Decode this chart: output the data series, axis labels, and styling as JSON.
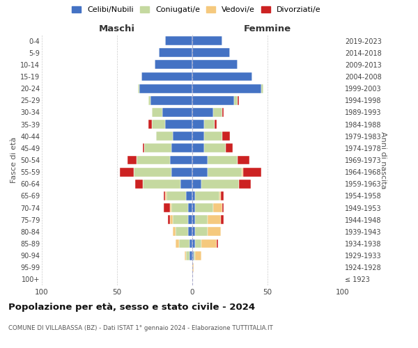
{
  "age_groups": [
    "100+",
    "95-99",
    "90-94",
    "85-89",
    "80-84",
    "75-79",
    "70-74",
    "65-69",
    "60-64",
    "55-59",
    "50-54",
    "45-49",
    "40-44",
    "35-39",
    "30-34",
    "25-29",
    "20-24",
    "15-19",
    "10-14",
    "5-9",
    "0-4"
  ],
  "birth_years": [
    "≤ 1923",
    "1924-1928",
    "1929-1933",
    "1934-1938",
    "1939-1943",
    "1944-1948",
    "1949-1953",
    "1954-1958",
    "1959-1963",
    "1964-1968",
    "1969-1973",
    "1974-1978",
    "1979-1983",
    "1984-1988",
    "1989-1993",
    "1994-1998",
    "1999-2003",
    "2004-2008",
    "2009-2013",
    "2014-2018",
    "2019-2023"
  ],
  "maschi": {
    "celibi": [
      0,
      0,
      2,
      2,
      3,
      3,
      3,
      4,
      8,
      14,
      15,
      14,
      13,
      18,
      20,
      28,
      35,
      34,
      25,
      22,
      18
    ],
    "coniugati": [
      0,
      0,
      2,
      7,
      8,
      10,
      11,
      13,
      25,
      25,
      22,
      18,
      11,
      9,
      7,
      1,
      1,
      0,
      0,
      0,
      0
    ],
    "vedovi": [
      0,
      0,
      1,
      2,
      2,
      2,
      1,
      1,
      0,
      0,
      0,
      0,
      0,
      0,
      0,
      0,
      0,
      0,
      0,
      0,
      0
    ],
    "divorziati": [
      0,
      0,
      0,
      0,
      0,
      1,
      4,
      1,
      5,
      9,
      6,
      1,
      0,
      2,
      0,
      0,
      0,
      0,
      0,
      0,
      0
    ]
  },
  "femmine": {
    "nubili": [
      0,
      0,
      1,
      2,
      2,
      2,
      2,
      2,
      6,
      10,
      10,
      8,
      8,
      8,
      14,
      28,
      46,
      40,
      30,
      25,
      20
    ],
    "coniugate": [
      0,
      0,
      1,
      4,
      8,
      8,
      12,
      16,
      25,
      23,
      20,
      14,
      12,
      7,
      6,
      2,
      1,
      0,
      0,
      0,
      0
    ],
    "vedove": [
      0,
      1,
      4,
      10,
      9,
      9,
      6,
      1,
      0,
      1,
      0,
      0,
      0,
      0,
      0,
      0,
      0,
      0,
      0,
      0,
      0
    ],
    "divorziate": [
      0,
      0,
      0,
      1,
      0,
      2,
      1,
      2,
      8,
      12,
      8,
      5,
      5,
      1,
      1,
      1,
      0,
      0,
      0,
      0,
      0
    ]
  },
  "colors": {
    "celibi": "#4472c4",
    "coniugati": "#c5d9a0",
    "vedovi": "#f5c97e",
    "divorziati": "#cc2222"
  },
  "title": "Popolazione per età, sesso e stato civile - 2024",
  "subtitle": "COMUNE DI VILLABASSA (BZ) - Dati ISTAT 1° gennaio 2024 - Elaborazione TUTTITALIA.IT",
  "xlabel_left": "Maschi",
  "xlabel_right": "Femmine",
  "ylabel_left": "Fasce di età",
  "ylabel_right": "Anni di nascita",
  "xlim": 100,
  "bg_color": "#ffffff",
  "grid_color": "#cccccc",
  "legend_labels": [
    "Celibi/Nubili",
    "Coniugati/e",
    "Vedovi/e",
    "Divorziati/e"
  ]
}
